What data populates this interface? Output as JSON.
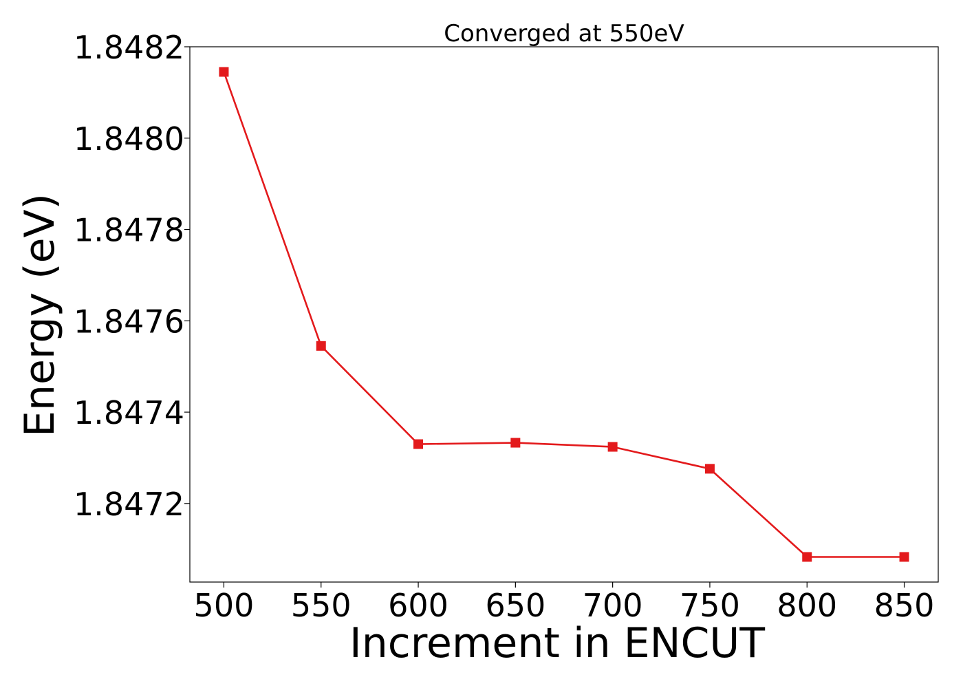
{
  "chart_data": {
    "type": "line",
    "title": "Converged at 550eV",
    "xlabel": "Increment in ENCUT",
    "ylabel": "Energy (eV)",
    "x": [
      500,
      550,
      600,
      650,
      700,
      750,
      800,
      850
    ],
    "series": [
      {
        "values": [
          1.848145,
          1.847545,
          1.84733,
          1.847333,
          1.847324,
          1.847276,
          1.847083,
          1.847083
        ],
        "color": "#e31a1c",
        "marker": "square"
      }
    ],
    "xticks": [
      500,
      550,
      600,
      650,
      700,
      750,
      800,
      850
    ],
    "xtick_labels": [
      "500",
      "550",
      "600",
      "650",
      "700",
      "750",
      "800",
      "850"
    ],
    "yticks": [
      1.8472,
      1.8474,
      1.8476,
      1.8478,
      1.848,
      1.8482
    ],
    "ytick_labels": [
      "1.8472",
      "1.8474",
      "1.8476",
      "1.8478",
      "1.8480",
      "1.8482"
    ],
    "xlim": [
      482.5,
      867.5
    ],
    "ylim": [
      1.847028,
      1.8482
    ],
    "grid": false,
    "legend": "none"
  }
}
